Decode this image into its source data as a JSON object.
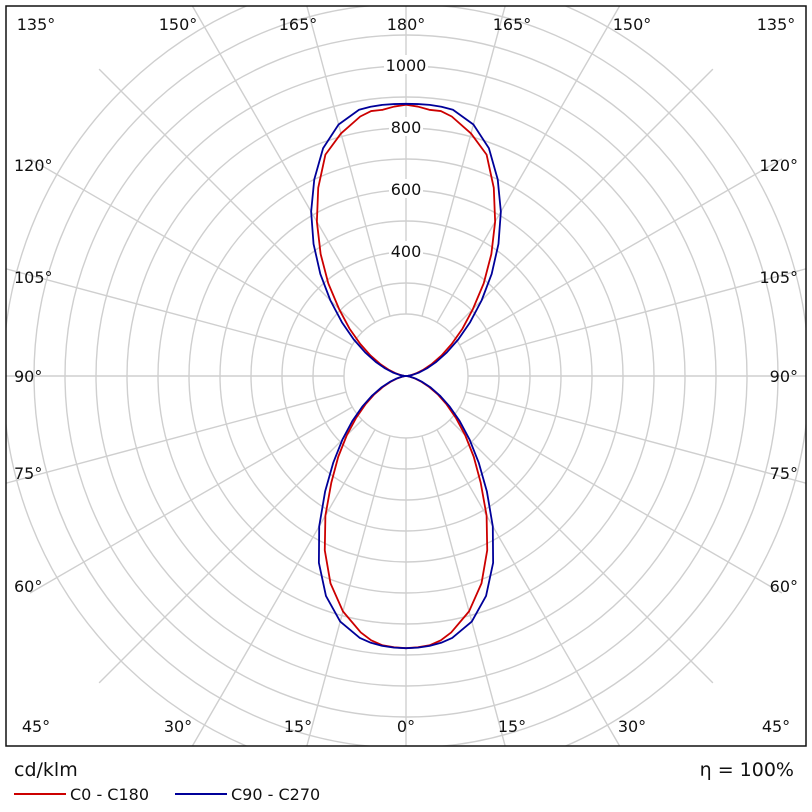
{
  "chart_data": {
    "type": "polar",
    "unit_label": "cd/klm",
    "efficiency_label": "η = 100%",
    "angle_unit": "°",
    "radial_ticks": [
      400,
      600,
      800,
      1000
    ],
    "radial_max": 1000,
    "grid": true,
    "angle_labels": {
      "top": [
        "135°",
        "150°",
        "165°",
        "180°",
        "165°",
        "150°",
        "135°"
      ],
      "bottom": [
        "45°",
        "30°",
        "15°",
        "0°",
        "15°",
        "30°",
        "45°"
      ],
      "left": [
        "120°",
        "105°",
        "90°",
        "75°",
        "60°"
      ],
      "right": [
        "120°",
        "105°",
        "90°",
        "75°",
        "60°"
      ]
    },
    "legend_position": "bottom-left",
    "series": [
      {
        "name": "C0 - C180",
        "color": "#cc0000",
        "gamma": [
          0,
          2.5,
          5,
          7.5,
          10,
          15,
          20,
          25,
          30,
          35,
          40,
          45,
          50,
          55,
          60,
          65,
          70,
          75,
          80,
          85,
          90,
          95,
          100,
          105,
          110,
          115,
          120,
          125,
          130,
          135,
          140,
          145,
          150,
          155,
          160,
          165,
          170,
          172.5,
          175,
          177.5,
          180
        ],
        "intensity": [
          878,
          876,
          872,
          860,
          840,
          786,
          712,
          620,
          520,
          420,
          340,
          270,
          210,
          160,
          118,
          80,
          50,
          28,
          12,
          4,
          0,
          6,
          18,
          36,
          60,
          92,
          132,
          180,
          238,
          305,
          390,
          480,
          575,
          670,
          760,
          810,
          850,
          862,
          862,
          870,
          875
        ]
      },
      {
        "name": "C90 - C270",
        "color": "#000099",
        "gamma": [
          0,
          2.5,
          5,
          7.5,
          10,
          15,
          20,
          25,
          30,
          35,
          40,
          45,
          50,
          55,
          60,
          65,
          70,
          75,
          80,
          85,
          90,
          95,
          100,
          105,
          110,
          115,
          120,
          125,
          130,
          135,
          140,
          145,
          150,
          155,
          160,
          165,
          170,
          172.5,
          175,
          177.5,
          180
        ],
        "intensity": [
          878,
          877,
          874,
          868,
          858,
          820,
          755,
          665,
          560,
          455,
          365,
          290,
          226,
          172,
          126,
          88,
          56,
          32,
          14,
          4,
          0,
          7,
          22,
          44,
          72,
          108,
          152,
          206,
          270,
          345,
          430,
          520,
          612,
          700,
          782,
          840,
          872,
          876,
          878,
          878,
          878
        ]
      }
    ]
  }
}
